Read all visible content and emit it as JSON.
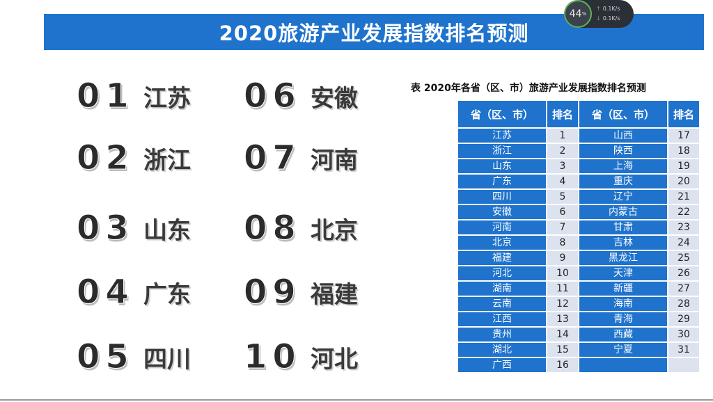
{
  "title": "2020旅游产业发展指数排名预测",
  "top_ranks": [
    {
      "num": "01",
      "name": "江苏"
    },
    {
      "num": "02",
      "name": "浙江"
    },
    {
      "num": "03",
      "name": "山东"
    },
    {
      "num": "04",
      "name": "广东"
    },
    {
      "num": "05",
      "name": "四川"
    },
    {
      "num": "06",
      "name": "安徽"
    },
    {
      "num": "07",
      "name": "河南"
    },
    {
      "num": "08",
      "name": "北京"
    },
    {
      "num": "09",
      "name": "福建"
    },
    {
      "num": "10",
      "name": "河北"
    }
  ],
  "table": {
    "caption": "表 2020年各省（区、市）旅游产业发展指数排名预测",
    "headers": [
      "省（区、市）",
      "排名",
      "省（区、市）",
      "排名"
    ],
    "rows": [
      [
        "江苏",
        "1",
        "山西",
        "17"
      ],
      [
        "浙江",
        "2",
        "陕西",
        "18"
      ],
      [
        "山东",
        "3",
        "上海",
        "19"
      ],
      [
        "广东",
        "4",
        "重庆",
        "20"
      ],
      [
        "四川",
        "5",
        "辽宁",
        "21"
      ],
      [
        "安徽",
        "6",
        "内蒙古",
        "22"
      ],
      [
        "河南",
        "7",
        "甘肃",
        "23"
      ],
      [
        "北京",
        "8",
        "吉林",
        "24"
      ],
      [
        "福建",
        "9",
        "黑龙江",
        "25"
      ],
      [
        "河北",
        "10",
        "天津",
        "26"
      ],
      [
        "湖南",
        "11",
        "新疆",
        "27"
      ],
      [
        "云南",
        "12",
        "海南",
        "28"
      ],
      [
        "江西",
        "13",
        "青海",
        "29"
      ],
      [
        "贵州",
        "14",
        "西藏",
        "30"
      ],
      [
        "湖北",
        "15",
        "宁夏",
        "31"
      ],
      [
        "广西",
        "16",
        "",
        ""
      ]
    ]
  },
  "net_widget": {
    "percent": "44",
    "percent_unit": "%",
    "upload": "0.1K/s",
    "download": "0.1K/s"
  },
  "colors": {
    "accent": "#1f73cc",
    "cell_light": "#dce3ef"
  }
}
